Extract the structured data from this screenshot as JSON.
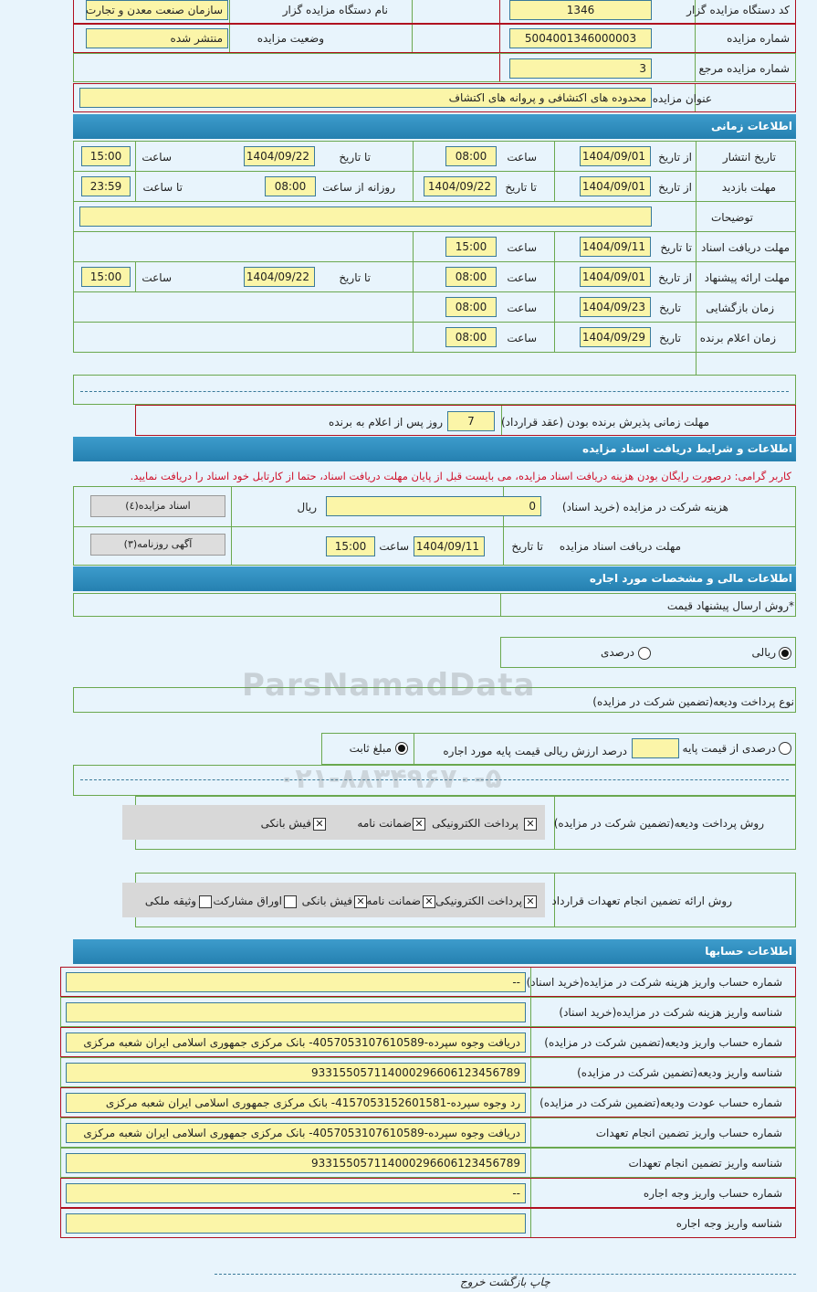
{
  "general": {
    "org_code_label": "کد دستگاه مزایده گزار",
    "org_code": "1346",
    "org_name_label": "نام دستگاه مزایده گزار",
    "org_name": "سازمان صنعت معدن و تجارت",
    "auction_no_label": "شماره مزایده",
    "auction_no": "5004001346000003",
    "status_label": "وضعیت مزایده",
    "status": "منتشر شده",
    "ref_no_label": "شماره مزایده مرجع",
    "ref_no": "3",
    "title_label": "عنوان مزایده",
    "title": "محدوده های اکتشافی و پروانه های اکتشاف"
  },
  "time": {
    "header": "اطلاعات زمانی",
    "from_date": "از تاریخ",
    "to_date": "تا تاریخ",
    "hour": "ساعت",
    "to_hour": "تا ساعت",
    "daily_from": "روزانه از ساعت",
    "date": "تاریخ",
    "publish_label": "تاریخ انتشار",
    "publish_from": "1404/09/01",
    "publish_from_time": "08:00",
    "publish_to": "1404/09/22",
    "publish_to_time": "15:00",
    "visit_label": "مهلت بازدید",
    "visit_from": "1404/09/01",
    "visit_to": "1404/09/22",
    "visit_time_from": "08:00",
    "visit_time_to": "23:59",
    "notes_label": "توضیحات",
    "notes": "",
    "docs_label": "مهلت دریافت اسناد",
    "docs_to": "1404/09/11",
    "docs_time": "15:00",
    "offer_label": "مهلت ارائه پیشنهاد",
    "offer_from": "1404/09/01",
    "offer_from_time": "08:00",
    "offer_to": "1404/09/22",
    "offer_to_time": "15:00",
    "opening_label": "زمان بازگشایی",
    "opening_date": "1404/09/23",
    "opening_time": "08:00",
    "winner_label": "زمان اعلام برنده",
    "winner_date": "1404/09/29",
    "winner_time": "08:00",
    "accept_label": "مهلت زمانی پذیرش برنده بودن (عقد قرارداد)",
    "accept_days": "7",
    "accept_suffix": "روز پس از اعلام به برنده"
  },
  "docs": {
    "header": "اطلاعات و شرایط دریافت اسناد مزایده",
    "note": "کاربر گرامی: درصورت رایگان بودن هزینه دریافت اسناد مزایده، می بایست قبل از پایان مهلت دریافت اسناد، حتما از کارتابل خود اسناد را دریافت نمایید.",
    "fee_label": "هزینه شرکت در مزایده (خرید اسناد)",
    "fee": "0",
    "currency": "ریال",
    "docs_button": "اسناد مزایده(٤)",
    "deadline_label": "مهلت دریافت اسناد مزایده",
    "to_date": "تا تاریخ",
    "deadline_date": "1404/09/11",
    "hour": "ساعت",
    "deadline_time": "15:00",
    "ad_button": "آگهی روزنامه(٣)"
  },
  "finance": {
    "header": "اطلاعات مالی و مشخصات مورد اجاره",
    "price_method_label": "*روش ارسال پیشنهاد قیمت",
    "rial": "ریالی",
    "percent": "درصدی",
    "deposit_type_label": "نوع پرداخت ودیعه(تضمین شرکت در مزایده)",
    "percent_of_base": "درصدی از قیمت پایه",
    "percent_value": "",
    "percent_desc": "درصد ارزش ریالی قیمت پایه مورد اجاره",
    "fixed_amount": "مبلغ ثابت",
    "deposit_method_label": "روش پرداخت ودیعه(تضمین شرکت در مزایده)",
    "deposit_methods": [
      "پرداخت الکترونیکی",
      "ضمانت نامه",
      "فیش بانکی"
    ],
    "guarantee_label": "روش ارائه تضمین انجام تعهدات قرارداد",
    "guarantee_methods": [
      "پرداخت الکترونیکی",
      "ضمانت نامه",
      "فیش بانکی",
      "اوراق مشارکت",
      "وثیقه ملکی"
    ]
  },
  "accounts": {
    "header": "اطلاعات حسابها",
    "rows": [
      {
        "label": "شماره حساب واریز هزینه شرکت در مزایده(خرید اسناد)",
        "value": "--"
      },
      {
        "label": "شناسه واریز هزینه شرکت در مزایده(خرید اسناد)",
        "value": ""
      },
      {
        "label": "شماره حساب واریز ودیعه(تضمین شرکت در مزایده)",
        "value": "دریافت وجوه سپرده-4057053107610589- بانک مرکزی جمهوری اسلامی ایران شعبه مرکزی"
      },
      {
        "label": "شناسه واریز ودیعه(تضمین شرکت در مزایده)",
        "value": "933155057114000296606123456789"
      },
      {
        "label": "شماره حساب عودت ودیعه(تضمین شرکت در مزایده)",
        "value": "رد وجوه سپرده-4157053152601581- بانک مرکزی جمهوری اسلامی ایران شعبه مرکزی"
      },
      {
        "label": "شماره حساب واریز تضمین انجام تعهدات",
        "value": "دریافت وجوه سپرده-4057053107610589- بانک مرکزی جمهوری اسلامی ایران شعبه مرکزی"
      },
      {
        "label": "شناسه واریز تضمین انجام تعهدات",
        "value": "933155057114000296606123456789"
      },
      {
        "label": "شماره حساب واریز وجه اجاره",
        "value": "--"
      },
      {
        "label": "شناسه واریز وجه اجاره",
        "value": ""
      }
    ]
  },
  "footer": {
    "print": "چاپ",
    "back": "بازگشت",
    "exit": "خروج"
  },
  "watermark": {
    "brand": "ParsNamadData",
    "phone": "۰۲۱-۸۸۳۴۹۶۷۰-۵"
  }
}
